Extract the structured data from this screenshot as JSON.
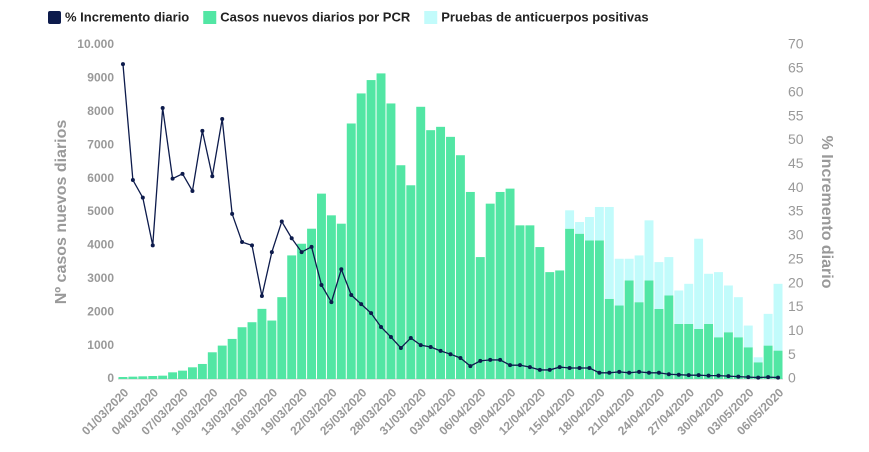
{
  "chart_data": {
    "type": "bar",
    "stacked": true,
    "categories": [
      "01/03/2020",
      null,
      null,
      "04/03/2020",
      null,
      null,
      "07/03/2020",
      null,
      null,
      "10/03/2020",
      null,
      null,
      "13/03/2020",
      null,
      null,
      "16/03/2020",
      null,
      null,
      "19/03/2020",
      null,
      null,
      "22/03/2020",
      null,
      null,
      "25/03/2020",
      null,
      null,
      "28/03/2020",
      null,
      null,
      "31/03/2020",
      null,
      null,
      "03/04/2020",
      null,
      null,
      "06/04/2020",
      null,
      null,
      "09/04/2020",
      null,
      null,
      "12/04/2020",
      null,
      null,
      "15/04/2020",
      null,
      null,
      "18/04/2020",
      null,
      null,
      "21/04/2020",
      null,
      null,
      "24/04/2020",
      null,
      null,
      "27/04/2020",
      null,
      null,
      "30/04/2020",
      null,
      null,
      "03/05/2020",
      null,
      null,
      "06/05/2020"
    ],
    "series": [
      {
        "name": "% Incremento diario",
        "type": "line",
        "axis": "y2",
        "color": "#0d1b4c",
        "values": [
          66,
          41.7,
          38,
          28,
          56.8,
          42,
          43,
          39.4,
          52,
          42.5,
          54.5,
          34.6,
          28.7,
          28,
          17.4,
          26.6,
          33,
          29.5,
          26.6,
          27.7,
          19.7,
          16.1,
          23,
          17.6,
          15.7,
          13.8,
          10.9,
          8.8,
          6.5,
          8.6,
          7.1,
          6.7,
          5.9,
          5.2,
          4.4,
          2.7,
          3.8,
          4,
          4,
          2.9,
          2.9,
          2.5,
          1.9,
          1.9,
          2.5,
          2.3,
          2.3,
          2.3,
          1.3,
          1.3,
          1.5,
          1.3,
          1.5,
          1.3,
          1.3,
          1,
          0.9,
          0.8,
          0.8,
          0.7,
          0.7,
          0.6,
          0.5,
          0.4,
          0.3,
          0.4,
          0.3
        ]
      },
      {
        "name": "Casos nuevos diarios por PCR",
        "type": "bar",
        "color": "#52e6a4",
        "values": [
          60,
          70,
          80,
          90,
          100,
          200,
          250,
          350,
          450,
          800,
          1000,
          1200,
          1550,
          1700,
          2100,
          1750,
          2450,
          3700,
          4050,
          4500,
          5550,
          4900,
          4650,
          7650,
          8550,
          8950,
          9150,
          8250,
          6400,
          5800,
          8150,
          7450,
          7550,
          7250,
          6700,
          5600,
          3650,
          5250,
          5600,
          5700,
          4600,
          4600,
          3950,
          3200,
          3250,
          4500,
          4350,
          4150,
          4150,
          2400,
          2200,
          2950,
          2300,
          2950,
          2100,
          2500,
          1650,
          1650,
          1500,
          1650,
          1250,
          1400,
          1250,
          950,
          500,
          1000,
          850
        ]
      },
      {
        "name": "Pruebas de anticuerpos positivas",
        "type": "bar",
        "color": "#c2fbfb",
        "values": [
          0,
          0,
          0,
          0,
          0,
          0,
          0,
          0,
          0,
          0,
          0,
          0,
          0,
          0,
          0,
          0,
          0,
          0,
          0,
          0,
          0,
          0,
          0,
          0,
          0,
          0,
          0,
          0,
          0,
          0,
          0,
          0,
          0,
          0,
          0,
          0,
          0,
          0,
          0,
          0,
          0,
          0,
          0,
          0,
          0,
          550,
          350,
          700,
          1000,
          2750,
          1400,
          650,
          1400,
          1800,
          1400,
          1150,
          1000,
          1200,
          2700,
          1500,
          1950,
          1400,
          1200,
          650,
          150,
          950,
          2000
        ]
      }
    ],
    "y_label": "Nº casos nuevos diarios",
    "y2_label": "% Incremento diario",
    "ylim": [
      0,
      10000
    ],
    "yticks": [
      0,
      1000,
      2000,
      3000,
      4000,
      5000,
      6000,
      7000,
      8000,
      9000,
      {
        "value": 10000,
        "label": "10.000"
      }
    ],
    "y2lim": [
      0,
      70
    ],
    "y2ticks": [
      0,
      5,
      10,
      15,
      20,
      25,
      30,
      35,
      40,
      45,
      50,
      55,
      60,
      65,
      70
    ],
    "legend": "top-left"
  }
}
